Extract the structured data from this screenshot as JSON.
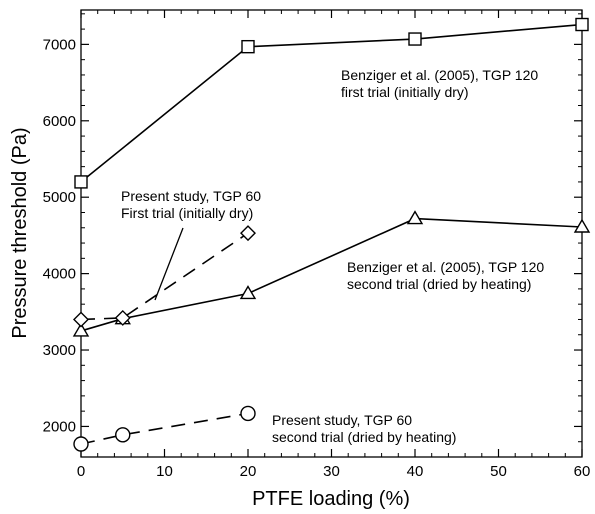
{
  "chart_data": {
    "type": "line",
    "xlabel": "PTFE loading (%)",
    "ylabel": "Pressure threshold (Pa)",
    "xlim": [
      0,
      60
    ],
    "ylim": [
      1600,
      7450
    ],
    "x_ticks": [
      0,
      10,
      20,
      30,
      40,
      50,
      60
    ],
    "y_ticks": [
      2000,
      3000,
      4000,
      5000,
      6000,
      7000
    ],
    "grid": false,
    "series": [
      {
        "marker": "square",
        "line": "solid",
        "x": [
          0,
          20,
          40,
          60
        ],
        "y": [
          5200,
          6970,
          7070,
          7260
        ]
      },
      {
        "marker": "triangle",
        "line": "solid",
        "x": [
          0,
          5,
          20,
          40,
          60
        ],
        "y": [
          3250,
          3410,
          3740,
          4720,
          4610
        ]
      },
      {
        "marker": "diamond",
        "line": "dashed",
        "x": [
          0,
          5,
          20
        ],
        "y": [
          3400,
          3420,
          4530
        ]
      },
      {
        "marker": "circle",
        "line": "dashed",
        "x": [
          0,
          5,
          20
        ],
        "y": [
          1770,
          1890,
          2170
        ]
      }
    ],
    "annotations": [
      {
        "id": "a1",
        "lines": [
          "Benziger et al. (2005), TGP 120",
          "first trial (initially dry)"
        ]
      },
      {
        "id": "a2",
        "lines": [
          "Present study, TGP 60",
          "First trial (initially dry)"
        ]
      },
      {
        "id": "a3",
        "lines": [
          "Benziger et al. (2005), TGP 120",
          "second trial (dried by heating)"
        ]
      },
      {
        "id": "a4",
        "lines": [
          "Present study, TGP 60",
          "second trial (dried by heating)"
        ]
      }
    ]
  }
}
